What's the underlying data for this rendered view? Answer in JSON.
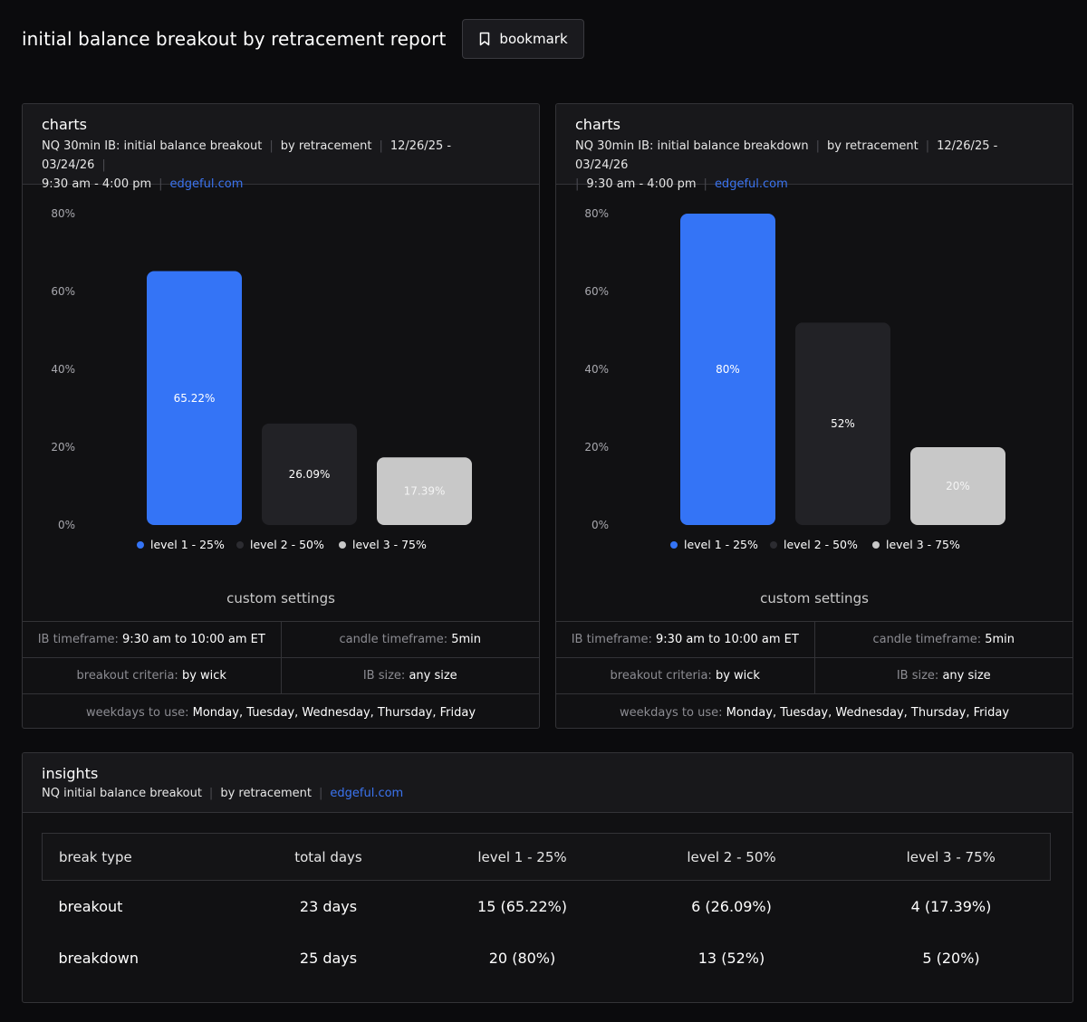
{
  "header": {
    "title": "initial balance breakout by retracement report",
    "bookmark_label": "bookmark"
  },
  "colors": {
    "level1": "#3474f6",
    "level2": "#222226",
    "level3": "#c8c8c8",
    "link": "#3b74f0"
  },
  "panels": [
    {
      "title": "charts",
      "sub1": "NQ 30min IB: initial balance breakout",
      "sub2": "by retracement",
      "sub3": "12/26/25 - 03/24/26",
      "sub4": "9:30 am - 4:00 pm",
      "link": "edgeful.com",
      "custom_title": "custom settings",
      "settings": {
        "ib_timeframe_label": "IB timeframe:",
        "ib_timeframe_value": "9:30 am to 10:00 am ET",
        "candle_timeframe_label": "candle timeframe:",
        "candle_timeframe_value": "5min",
        "breakout_criteria_label": "breakout criteria:",
        "breakout_criteria_value": "by wick",
        "ib_size_label": "IB size:",
        "ib_size_value": "any size",
        "weekdays_label": "weekdays to use:",
        "weekdays_value": "Monday, Tuesday, Wednesday, Thursday, Friday"
      }
    },
    {
      "title": "charts",
      "sub1": "NQ 30min IB: initial balance breakdown",
      "sub2": "by retracement",
      "sub3": "12/26/25 - 03/24/26",
      "sub4": "9:30 am - 4:00 pm",
      "link": "edgeful.com",
      "custom_title": "custom settings",
      "settings": {
        "ib_timeframe_label": "IB timeframe:",
        "ib_timeframe_value": "9:30 am to 10:00 am ET",
        "candle_timeframe_label": "candle timeframe:",
        "candle_timeframe_value": "5min",
        "breakout_criteria_label": "breakout criteria:",
        "breakout_criteria_value": "by wick",
        "ib_size_label": "IB size:",
        "ib_size_value": "any size",
        "weekdays_label": "weekdays to use:",
        "weekdays_value": "Monday, Tuesday, Wednesday, Thursday, Friday"
      }
    }
  ],
  "chart_data": [
    {
      "type": "bar",
      "title": "NQ 30min IB: initial balance breakout",
      "categories": [
        "level 1 - 25%",
        "level 2 - 50%",
        "level 3 - 75%"
      ],
      "values": [
        65.22,
        26.09,
        17.39
      ],
      "data_labels": [
        "65.22%",
        "26.09%",
        "17.39%"
      ],
      "y_ticks": [
        "0%",
        "20%",
        "40%",
        "60%",
        "80%"
      ],
      "ylim": [
        0,
        80
      ],
      "legend": "bottom-center",
      "grid": false
    },
    {
      "type": "bar",
      "title": "NQ 30min IB: initial balance breakdown",
      "categories": [
        "level 1 - 25%",
        "level 2 - 50%",
        "level 3 - 75%"
      ],
      "values": [
        80,
        52,
        20
      ],
      "data_labels": [
        "80%",
        "52%",
        "20%"
      ],
      "y_ticks": [
        "0%",
        "20%",
        "40%",
        "60%",
        "80%"
      ],
      "ylim": [
        0,
        80
      ],
      "legend": "bottom-center",
      "grid": false
    }
  ],
  "insights": {
    "title": "insights",
    "sub1": "NQ initial balance breakout",
    "sub2": "by retracement",
    "link": "edgeful.com",
    "columns": [
      "break type",
      "total days",
      "level 1 - 25%",
      "level 2 - 50%",
      "level 3 - 75%"
    ],
    "rows": [
      [
        "breakout",
        "23 days",
        "15 (65.22%)",
        "6 (26.09%)",
        "4 (17.39%)"
      ],
      [
        "breakdown",
        "25 days",
        "20 (80%)",
        "13 (52%)",
        "5 (20%)"
      ]
    ]
  }
}
